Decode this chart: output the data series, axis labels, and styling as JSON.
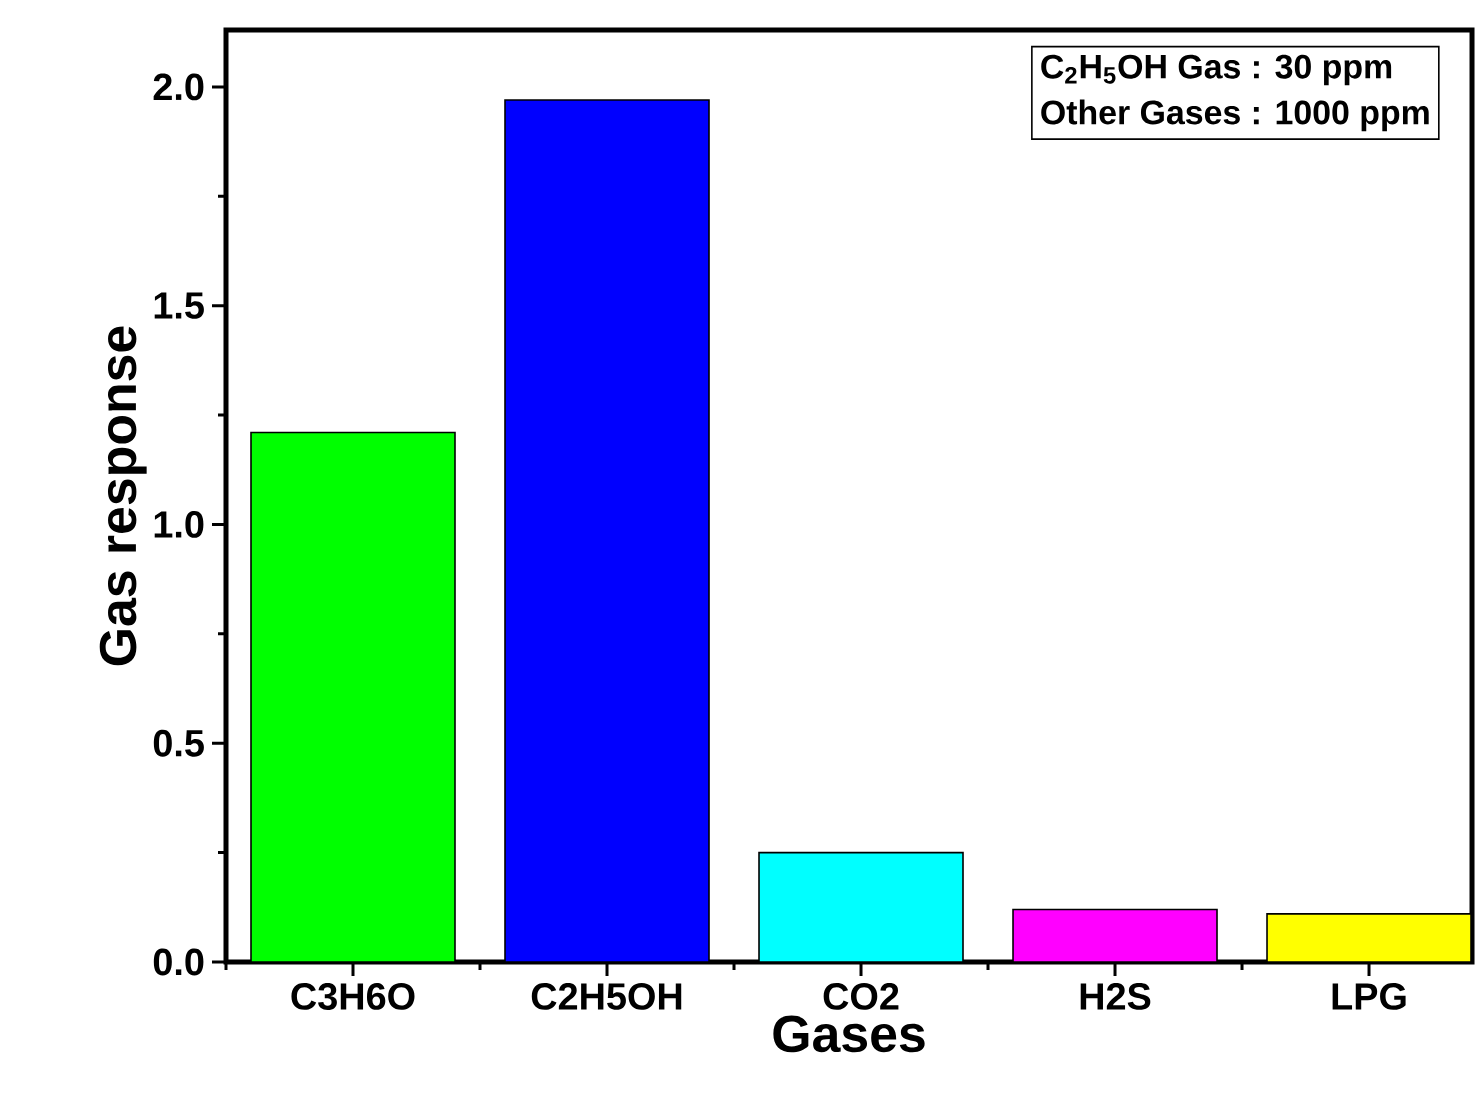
{
  "chart_data": {
    "type": "bar",
    "xlabel": "Gases",
    "ylabel": "Gas response",
    "categories": [
      "C3H6O",
      "C2H5OH",
      "CO2",
      "H2S",
      "LPG"
    ],
    "values": [
      1.21,
      1.97,
      0.25,
      0.12,
      0.11
    ],
    "colors": [
      "#00ff00",
      "#0000ff",
      "#00ffff",
      "#ff00ff",
      "#ffff00"
    ],
    "ylim": [
      0,
      2.13
    ],
    "yticks": [
      {
        "value": 0,
        "label": "0.0"
      },
      {
        "value": 0.5,
        "label": "0.5"
      },
      {
        "value": 1,
        "label": "1.0"
      },
      {
        "value": 1.5,
        "label": "1.5"
      },
      {
        "value": 2,
        "label": "2.0"
      }
    ],
    "annotations": [
      "C$_{2}$H$_{5}$OH Gas : 30 ppm",
      "Other Gases : 1000 ppm"
    ],
    "grid": false
  }
}
